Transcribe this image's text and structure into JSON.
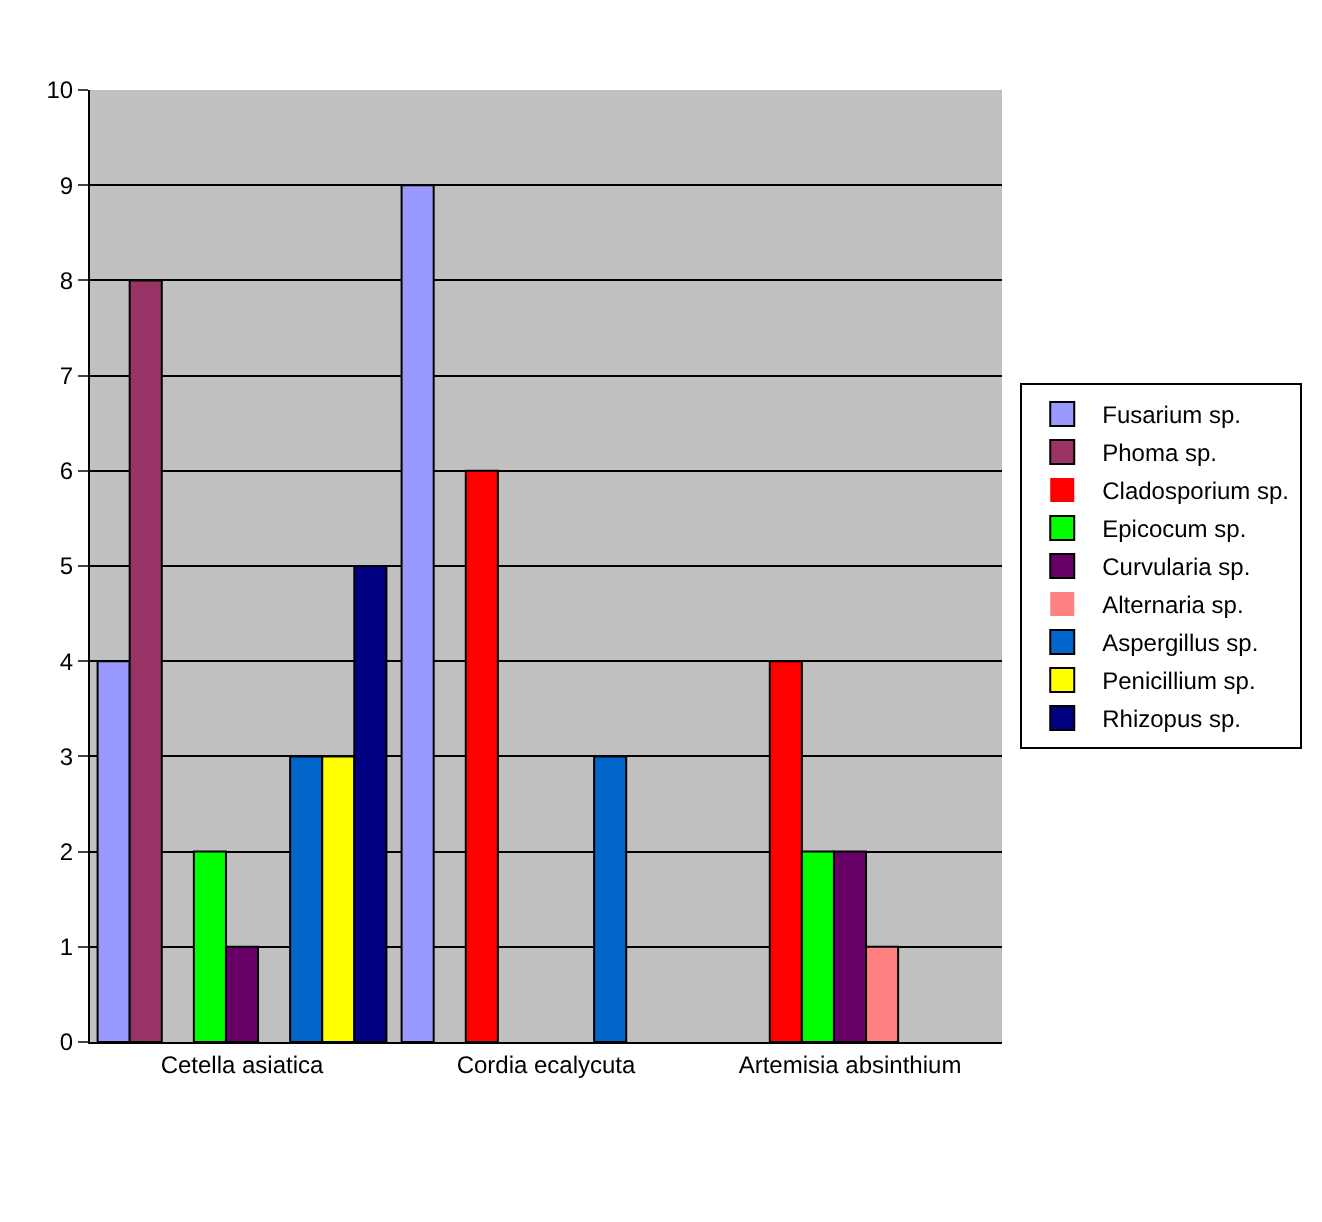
{
  "chart_data": {
    "type": "bar",
    "categories": [
      "Cetella asiatica",
      "Cordia ecalycuta",
      "Artemisia absinthium"
    ],
    "series": [
      {
        "name": "Fusarium sp.",
        "color": "#9999ff",
        "values": [
          4,
          9,
          0
        ]
      },
      {
        "name": "Phoma sp.",
        "color": "#993366",
        "values": [
          8,
          0,
          0
        ]
      },
      {
        "name": "Cladosporium sp.",
        "color": "#ff0000",
        "values": [
          0,
          6,
          4
        ]
      },
      {
        "name": "Epicocum sp.",
        "color": "#00ff00",
        "values": [
          2,
          0,
          2
        ]
      },
      {
        "name": "Curvularia sp.",
        "color": "#660066",
        "values": [
          1,
          0,
          2
        ]
      },
      {
        "name": "Alternaria sp.",
        "color": "#ff8080",
        "values": [
          0,
          0,
          1
        ]
      },
      {
        "name": "Aspergillus sp.",
        "color": "#0066cc",
        "values": [
          3,
          3,
          0
        ]
      },
      {
        "name": "Penicillium sp.",
        "color": "#ffff00",
        "values": [
          3,
          0,
          0
        ]
      },
      {
        "name": "Rhizopus sp.",
        "color": "#000080",
        "values": [
          5,
          0,
          0
        ]
      }
    ],
    "ylim": [
      0,
      10
    ],
    "yticks": [
      0,
      1,
      2,
      3,
      4,
      5,
      6,
      7,
      8,
      9,
      10
    ],
    "grid": "y",
    "legend": "right"
  }
}
